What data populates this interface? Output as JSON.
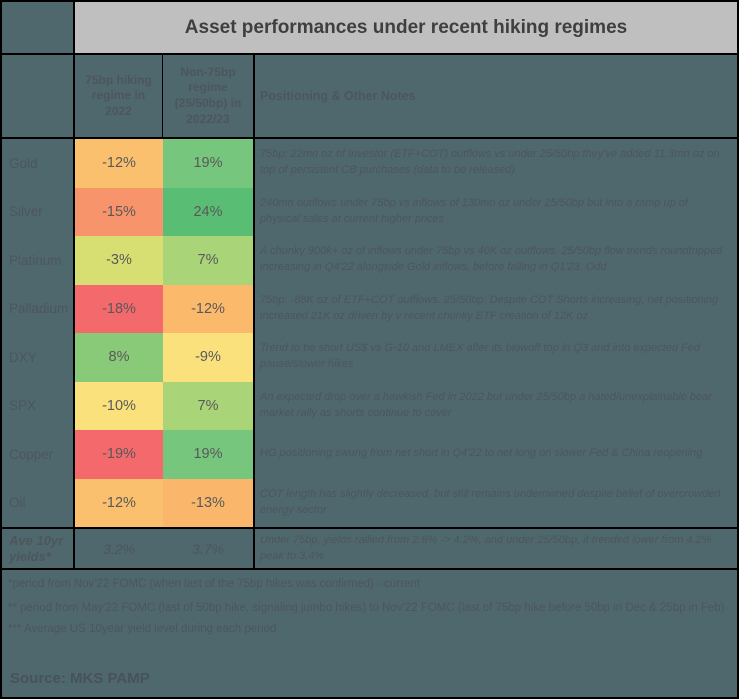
{
  "title": "Asset performances under recent hiking regimes",
  "columns": {
    "col1": "75bp hiking regime in 2022",
    "col2": "Non-75bp regime (25/50bp) in 2022/23",
    "notes": "Positioning & Other Notes"
  },
  "rows": [
    {
      "label": "Gold",
      "v1": "-12%",
      "v1_color": "#FAC06E",
      "v2": "19%",
      "v2_color": "#76C67D",
      "note": "75bp: 22mn oz of Investor (ETF+COT) outflows vs under 25/50bp they've added 11.3mn oz on top of persistent CB purchases (data to be released)"
    },
    {
      "label": "Silver",
      "v1": "-15%",
      "v1_color": "#F8946C",
      "v2": "24%",
      "v2_color": "#5ABD74",
      "note": "240mn outflows under 75bp vs inflows of 130mn oz under 25/50bp but into a ramp up of physical sales at current higher prices"
    },
    {
      "label": "Platinum",
      "v1": "-3%",
      "v1_color": "#D8DF72",
      "v2": "7%",
      "v2_color": "#A9D478",
      "note": "A chunky 900k+ oz of inflows under 75bp vs 40K oz outflows. 25/50bp flow trends roundtripped increasing in Q4'22 alongside Gold inflows, before falling in Q1'23. Odd"
    },
    {
      "label": "Palladium",
      "v1": "-18%",
      "v1_color": "#F4696C",
      "v2": "-12%",
      "v2_color": "#FBBA6B",
      "note": "75bp: -88K oz of ETF+COT outflows. 25/50bp: Despite COT Shorts increasing, net positioning increased 21K oz driven by v recent chunky ETF creation of 12K oz"
    },
    {
      "label": "DXY",
      "v1": "8%",
      "v1_color": "#89CA79",
      "v2": "-9%",
      "v2_color": "#FAE17C",
      "note": "Trend to be short US$ vs G-10 and LMEX after its blowoff top in Q3 and into expected Fed pause/slower hikes"
    },
    {
      "label": "SPX",
      "v1": "-10%",
      "v1_color": "#FAE17C",
      "v2": "7%",
      "v2_color": "#A9D478",
      "note": "An expected drop over a hawkish Fed in 2022 but under 25/50bp a hated/unexplainable bear market rally as shorts continue to cover"
    },
    {
      "label": "Copper",
      "v1": "-19%",
      "v1_color": "#F4696C",
      "v2": "19%",
      "v2_color": "#76C67D",
      "note": "HG positioning swung from net short in Q4'22 to net long on slower Fed & China reopening"
    },
    {
      "label": "Oil",
      "v1": "-12%",
      "v1_color": "#FAC06E",
      "v2": "-13%",
      "v2_color": "#FAB76C",
      "note": "COT length has slightly decreased, but still remains underowned despite belief of overcrowded energy sector"
    }
  ],
  "summary_row": {
    "label": "Ave 10yr yields*",
    "v1": "3.2%",
    "v2": "3.7%",
    "note": "Under 75bp, yields rallied from 2.6% -> 4.2%, and under 25/50bp, it trended lower from 4.2% peak to 3.4%"
  },
  "footnotes": [
    "*period from Nov'22 FOMC (when last of the 75bp hikes was confirmed) - current",
    "** period from May'22 FOMC (last of 50bp hike, signaling jumbo hikes) to Nov'22 FOMC (last of 75bp hike before 50bp in Dec & 25bp in Feb)",
    "*** Average US 10year yield level during each period"
  ],
  "source": "Source: MKS PAMP",
  "colors": {
    "background": "#4E686E",
    "title_bar": "#BFBFBF",
    "border": "#000000",
    "negative_strong": "#F4696C",
    "negative_mid": "#FAC06E",
    "neutral": "#FAE17C",
    "positive_mid": "#A9D478",
    "positive_strong": "#5ABD74"
  },
  "chart_data": {
    "type": "table",
    "title": "Asset performances under recent hiking regimes",
    "columns": [
      "75bp hiking regime in 2022",
      "Non-75bp regime (25/50bp) in 2022/23"
    ],
    "row_labels": [
      "Gold",
      "Silver",
      "Platinum",
      "Palladium",
      "DXY",
      "SPX",
      "Copper",
      "Oil",
      "Ave 10yr yields*"
    ],
    "values_pct": [
      [
        -12,
        19
      ],
      [
        -15,
        24
      ],
      [
        -3,
        7
      ],
      [
        -18,
        -12
      ],
      [
        8,
        -9
      ],
      [
        -10,
        7
      ],
      [
        -19,
        19
      ],
      [
        -12,
        -13
      ],
      [
        3.2,
        3.7
      ]
    ],
    "color_coding": "red-yellow-green heatmap on performance cells; yields row uncolored",
    "source": "MKS PAMP"
  }
}
